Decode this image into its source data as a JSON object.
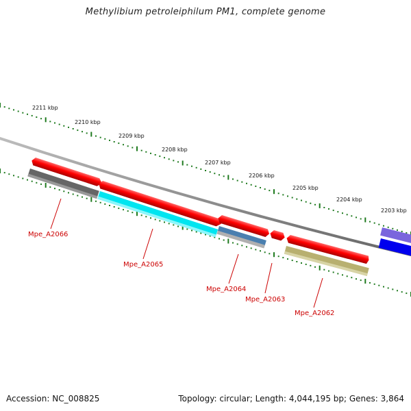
{
  "title": "Methylibium petroleiphilum PM1, complete genome",
  "accession_label": "Accession: NC_008825",
  "topology_label": "Topology: circular; Length: 4,044,195 bp; Genes: 3,864",
  "ticks": [
    "2211 kbp",
    "2210 kbp",
    "2209 kbp",
    "2208 kbp",
    "2207 kbp",
    "2206 kbp",
    "2205 kbp",
    "2204 kbp",
    "2203 kbp"
  ],
  "colors": {
    "backbone": "#8a8a8a",
    "tick": "#1e7a1e",
    "label": "#cc0000",
    "cds": "#ff0000"
  },
  "genes": [
    {
      "label": "Mpe_A2066",
      "color": "#666666"
    },
    {
      "label": "Mpe_A2065",
      "color": "#00e5f0"
    },
    {
      "label": "Mpe_A2064",
      "color": "#4a7faf"
    },
    {
      "label": "Mpe_A2063",
      "color": "#b0b0b0"
    },
    {
      "label": "Mpe_A2062",
      "color": "#b8b070"
    },
    {
      "label": "",
      "color": "#0000ee"
    }
  ],
  "cds_features": 6,
  "other_features": [
    {
      "color": "#7a66dd"
    }
  ]
}
